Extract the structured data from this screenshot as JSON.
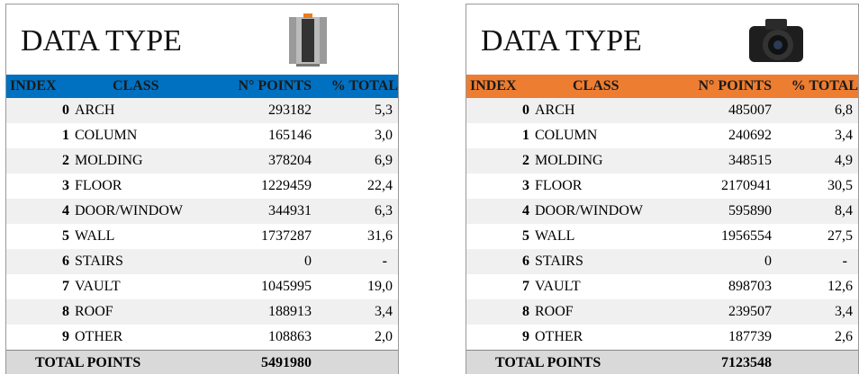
{
  "tables": [
    {
      "title": "DATA TYPE",
      "header": [
        "INDEX",
        "CLASS",
        "N° POINTS",
        "% TOTAL"
      ],
      "rows": [
        [
          0,
          "ARCH",
          293182,
          "5,3"
        ],
        [
          1,
          "COLUMN",
          165146,
          "3,0"
        ],
        [
          2,
          "MOLDING",
          378204,
          "6,9"
        ],
        [
          3,
          "FLOOR",
          1229459,
          "22,4"
        ],
        [
          4,
          "DOOR/WINDOW",
          344931,
          "6,3"
        ],
        [
          5,
          "WALL",
          1737287,
          "31,6"
        ],
        [
          6,
          "STAIRS",
          0,
          "-"
        ],
        [
          7,
          "VAULT",
          1045995,
          "19,0"
        ],
        [
          8,
          "ROOF",
          188913,
          "3,4"
        ],
        [
          9,
          "OTHER",
          108863,
          "2,0"
        ]
      ],
      "total_label": "TOTAL POINTS",
      "total_value": 5491980
    },
    {
      "title": "DATA TYPE",
      "header": [
        "INDEX",
        "CLASS",
        "N° POINTS",
        "% TOTAL"
      ],
      "rows": [
        [
          0,
          "ARCH",
          485007,
          "6,8"
        ],
        [
          1,
          "COLUMN",
          240692,
          "3,4"
        ],
        [
          2,
          "MOLDING",
          348515,
          "4,9"
        ],
        [
          3,
          "FLOOR",
          2170941,
          "30,5"
        ],
        [
          4,
          "DOOR/WINDOW",
          595890,
          "8,4"
        ],
        [
          5,
          "WALL",
          1956554,
          "27,5"
        ],
        [
          6,
          "STAIRS",
          0,
          "-"
        ],
        [
          7,
          "VAULT",
          898703,
          "12,6"
        ],
        [
          8,
          "ROOF",
          239507,
          "3,4"
        ],
        [
          9,
          "OTHER",
          187739,
          "2,6"
        ]
      ],
      "total_label": "TOTAL POINTS",
      "total_value": 7123548
    }
  ]
}
